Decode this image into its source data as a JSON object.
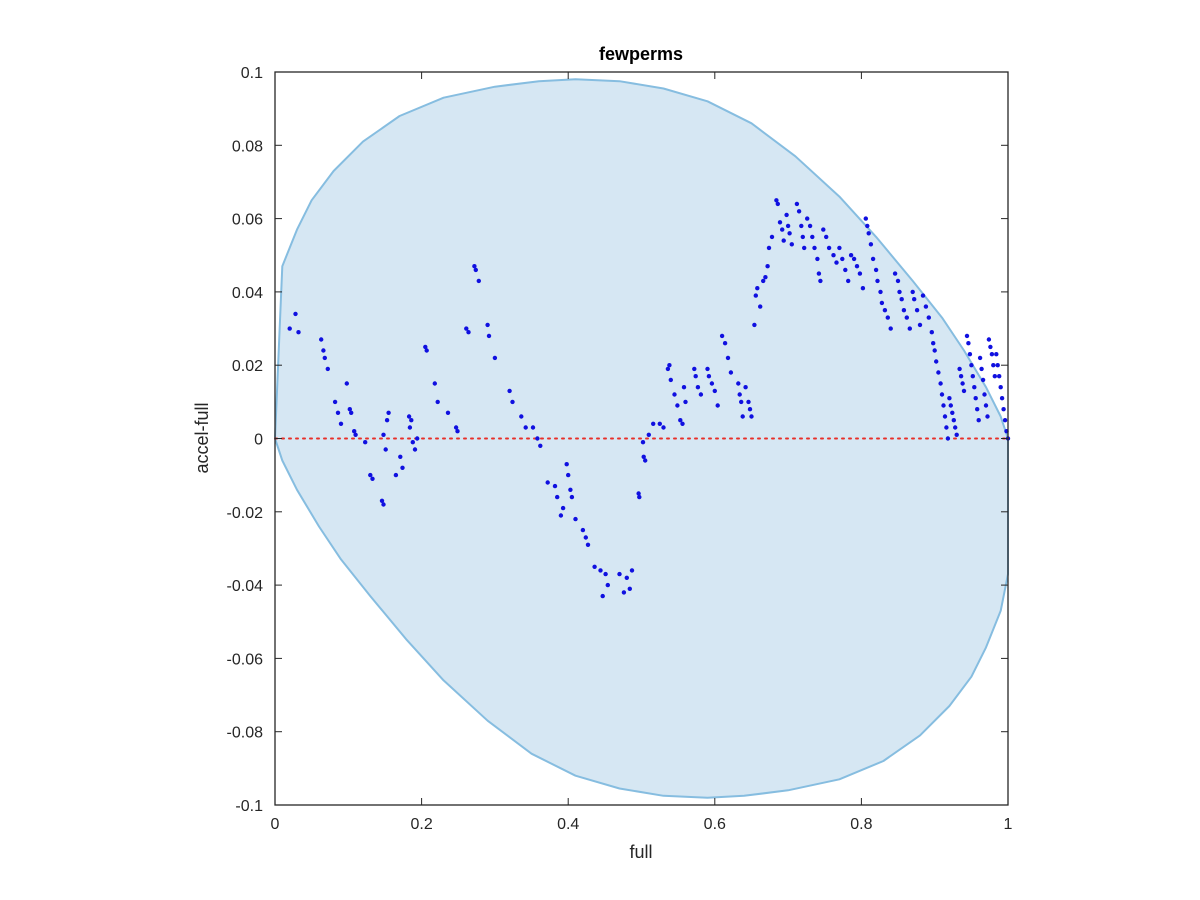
{
  "chart_data": {
    "type": "scatter",
    "title": "fewperms",
    "xlabel": "full",
    "ylabel": "accel-full",
    "xlim": [
      0,
      1
    ],
    "ylim": [
      -0.1,
      0.1
    ],
    "xticks": [
      "0",
      "0.2",
      "0.4",
      "0.6",
      "0.8",
      "1"
    ],
    "xtick_values": [
      0,
      0.2,
      0.4,
      0.6,
      0.8,
      1
    ],
    "yticks": [
      "-0.1",
      "-0.08",
      "-0.06",
      "-0.04",
      "-0.02",
      "0",
      "0.02",
      "0.04",
      "0.06",
      "0.08",
      "0.1"
    ],
    "ytick_values": [
      -0.1,
      -0.08,
      -0.06,
      -0.04,
      -0.02,
      0,
      0.02,
      0.04,
      0.06,
      0.08,
      0.1
    ],
    "grid": false,
    "reference_line": {
      "y": 0,
      "style": "dotted",
      "color": "#e8302a"
    },
    "region": {
      "description": "shaded elliptical confidence band",
      "fill_color": "#d6e7f3",
      "edge_color": "#86bde0",
      "boundary": [
        [
          0.0,
          0.0
        ],
        [
          0.01,
          0.047
        ],
        [
          0.03,
          0.057
        ],
        [
          0.05,
          0.065
        ],
        [
          0.08,
          0.073
        ],
        [
          0.12,
          0.081
        ],
        [
          0.17,
          0.088
        ],
        [
          0.23,
          0.093
        ],
        [
          0.3,
          0.096
        ],
        [
          0.36,
          0.0975
        ],
        [
          0.41,
          0.098
        ],
        [
          0.47,
          0.0975
        ],
        [
          0.53,
          0.0955
        ],
        [
          0.59,
          0.092
        ],
        [
          0.65,
          0.086
        ],
        [
          0.71,
          0.077
        ],
        [
          0.77,
          0.066
        ],
        [
          0.82,
          0.055
        ],
        [
          0.87,
          0.043
        ],
        [
          0.91,
          0.033
        ],
        [
          0.94,
          0.024
        ],
        [
          0.97,
          0.014
        ],
        [
          0.99,
          0.006
        ],
        [
          1.0,
          0.0
        ],
        [
          1.0,
          -0.037
        ],
        [
          0.99,
          -0.047
        ],
        [
          0.97,
          -0.057
        ],
        [
          0.95,
          -0.065
        ],
        [
          0.92,
          -0.073
        ],
        [
          0.88,
          -0.081
        ],
        [
          0.83,
          -0.088
        ],
        [
          0.77,
          -0.093
        ],
        [
          0.7,
          -0.096
        ],
        [
          0.64,
          -0.0975
        ],
        [
          0.59,
          -0.098
        ],
        [
          0.53,
          -0.0975
        ],
        [
          0.47,
          -0.0955
        ],
        [
          0.41,
          -0.092
        ],
        [
          0.35,
          -0.086
        ],
        [
          0.29,
          -0.077
        ],
        [
          0.23,
          -0.066
        ],
        [
          0.18,
          -0.055
        ],
        [
          0.13,
          -0.043
        ],
        [
          0.09,
          -0.033
        ],
        [
          0.06,
          -0.024
        ],
        [
          0.03,
          -0.014
        ],
        [
          0.01,
          -0.006
        ],
        [
          0.0,
          0.0
        ]
      ]
    },
    "series": [
      {
        "marker_color": "#1010e0",
        "points": [
          [
            0.02,
            0.03
          ],
          [
            0.028,
            0.034
          ],
          [
            0.032,
            0.029
          ],
          [
            0.063,
            0.027
          ],
          [
            0.066,
            0.024
          ],
          [
            0.068,
            0.022
          ],
          [
            0.072,
            0.019
          ],
          [
            0.082,
            0.01
          ],
          [
            0.086,
            0.007
          ],
          [
            0.09,
            0.004
          ],
          [
            0.098,
            0.015
          ],
          [
            0.102,
            0.008
          ],
          [
            0.104,
            0.007
          ],
          [
            0.108,
            0.002
          ],
          [
            0.11,
            0.001
          ],
          [
            0.123,
            -0.001
          ],
          [
            0.13,
            -0.01
          ],
          [
            0.133,
            -0.011
          ],
          [
            0.146,
            -0.017
          ],
          [
            0.148,
            -0.018
          ],
          [
            0.148,
            0.001
          ],
          [
            0.151,
            -0.003
          ],
          [
            0.153,
            0.005
          ],
          [
            0.155,
            0.007
          ],
          [
            0.165,
            -0.01
          ],
          [
            0.171,
            -0.005
          ],
          [
            0.174,
            -0.008
          ],
          [
            0.183,
            0.006
          ],
          [
            0.184,
            0.003
          ],
          [
            0.186,
            0.005
          ],
          [
            0.188,
            -0.001
          ],
          [
            0.191,
            -0.003
          ],
          [
            0.194,
            0.0
          ],
          [
            0.205,
            0.025
          ],
          [
            0.207,
            0.024
          ],
          [
            0.218,
            0.015
          ],
          [
            0.222,
            0.01
          ],
          [
            0.236,
            0.007
          ],
          [
            0.247,
            0.003
          ],
          [
            0.249,
            0.002
          ],
          [
            0.261,
            0.03
          ],
          [
            0.264,
            0.029
          ],
          [
            0.272,
            0.047
          ],
          [
            0.274,
            0.046
          ],
          [
            0.278,
            0.043
          ],
          [
            0.29,
            0.031
          ],
          [
            0.292,
            0.028
          ],
          [
            0.3,
            0.022
          ],
          [
            0.32,
            0.013
          ],
          [
            0.324,
            0.01
          ],
          [
            0.336,
            0.006
          ],
          [
            0.342,
            0.003
          ],
          [
            0.352,
            0.003
          ],
          [
            0.358,
            0.0
          ],
          [
            0.362,
            -0.002
          ],
          [
            0.372,
            -0.012
          ],
          [
            0.382,
            -0.013
          ],
          [
            0.385,
            -0.016
          ],
          [
            0.39,
            -0.021
          ],
          [
            0.393,
            -0.019
          ],
          [
            0.398,
            -0.007
          ],
          [
            0.4,
            -0.01
          ],
          [
            0.403,
            -0.014
          ],
          [
            0.405,
            -0.016
          ],
          [
            0.41,
            -0.022
          ],
          [
            0.42,
            -0.025
          ],
          [
            0.424,
            -0.027
          ],
          [
            0.427,
            -0.029
          ],
          [
            0.436,
            -0.035
          ],
          [
            0.444,
            -0.036
          ],
          [
            0.447,
            -0.043
          ],
          [
            0.451,
            -0.037
          ],
          [
            0.454,
            -0.04
          ],
          [
            0.47,
            -0.037
          ],
          [
            0.476,
            -0.042
          ],
          [
            0.48,
            -0.038
          ],
          [
            0.484,
            -0.041
          ],
          [
            0.487,
            -0.036
          ],
          [
            0.496,
            -0.015
          ],
          [
            0.497,
            -0.016
          ],
          [
            0.502,
            -0.001
          ],
          [
            0.503,
            -0.005
          ],
          [
            0.505,
            -0.006
          ],
          [
            0.51,
            0.001
          ],
          [
            0.516,
            0.004
          ],
          [
            0.525,
            0.004
          ],
          [
            0.53,
            0.003
          ],
          [
            0.536,
            0.019
          ],
          [
            0.538,
            0.02
          ],
          [
            0.54,
            0.016
          ],
          [
            0.545,
            0.012
          ],
          [
            0.549,
            0.009
          ],
          [
            0.553,
            0.005
          ],
          [
            0.556,
            0.004
          ],
          [
            0.558,
            0.014
          ],
          [
            0.56,
            0.01
          ],
          [
            0.572,
            0.019
          ],
          [
            0.574,
            0.017
          ],
          [
            0.577,
            0.014
          ],
          [
            0.581,
            0.012
          ],
          [
            0.59,
            0.019
          ],
          [
            0.592,
            0.017
          ],
          [
            0.596,
            0.015
          ],
          [
            0.6,
            0.013
          ],
          [
            0.604,
            0.009
          ],
          [
            0.61,
            0.028
          ],
          [
            0.614,
            0.026
          ],
          [
            0.618,
            0.022
          ],
          [
            0.622,
            0.018
          ],
          [
            0.632,
            0.015
          ],
          [
            0.634,
            0.012
          ],
          [
            0.636,
            0.01
          ],
          [
            0.638,
            0.006
          ],
          [
            0.642,
            0.014
          ],
          [
            0.646,
            0.01
          ],
          [
            0.648,
            0.008
          ],
          [
            0.65,
            0.006
          ],
          [
            0.654,
            0.031
          ],
          [
            0.656,
            0.039
          ],
          [
            0.658,
            0.041
          ],
          [
            0.662,
            0.036
          ],
          [
            0.666,
            0.043
          ],
          [
            0.669,
            0.044
          ],
          [
            0.672,
            0.047
          ],
          [
            0.674,
            0.052
          ],
          [
            0.678,
            0.055
          ],
          [
            0.684,
            0.065
          ],
          [
            0.686,
            0.064
          ],
          [
            0.689,
            0.059
          ],
          [
            0.692,
            0.057
          ],
          [
            0.694,
            0.054
          ],
          [
            0.698,
            0.061
          ],
          [
            0.7,
            0.058
          ],
          [
            0.702,
            0.056
          ],
          [
            0.705,
            0.053
          ],
          [
            0.712,
            0.064
          ],
          [
            0.715,
            0.062
          ],
          [
            0.718,
            0.058
          ],
          [
            0.72,
            0.055
          ],
          [
            0.722,
            0.052
          ],
          [
            0.726,
            0.06
          ],
          [
            0.73,
            0.058
          ],
          [
            0.733,
            0.055
          ],
          [
            0.736,
            0.052
          ],
          [
            0.74,
            0.049
          ],
          [
            0.742,
            0.045
          ],
          [
            0.744,
            0.043
          ],
          [
            0.748,
            0.057
          ],
          [
            0.752,
            0.055
          ],
          [
            0.756,
            0.052
          ],
          [
            0.762,
            0.05
          ],
          [
            0.766,
            0.048
          ],
          [
            0.77,
            0.052
          ],
          [
            0.774,
            0.049
          ],
          [
            0.778,
            0.046
          ],
          [
            0.782,
            0.043
          ],
          [
            0.786,
            0.05
          ],
          [
            0.79,
            0.049
          ],
          [
            0.794,
            0.047
          ],
          [
            0.798,
            0.045
          ],
          [
            0.802,
            0.041
          ],
          [
            0.806,
            0.06
          ],
          [
            0.808,
            0.058
          ],
          [
            0.81,
            0.056
          ],
          [
            0.813,
            0.053
          ],
          [
            0.816,
            0.049
          ],
          [
            0.82,
            0.046
          ],
          [
            0.822,
            0.043
          ],
          [
            0.826,
            0.04
          ],
          [
            0.828,
            0.037
          ],
          [
            0.832,
            0.035
          ],
          [
            0.836,
            0.033
          ],
          [
            0.84,
            0.03
          ],
          [
            0.846,
            0.045
          ],
          [
            0.85,
            0.043
          ],
          [
            0.852,
            0.04
          ],
          [
            0.855,
            0.038
          ],
          [
            0.858,
            0.035
          ],
          [
            0.862,
            0.033
          ],
          [
            0.866,
            0.03
          ],
          [
            0.87,
            0.04
          ],
          [
            0.872,
            0.038
          ],
          [
            0.876,
            0.035
          ],
          [
            0.88,
            0.031
          ],
          [
            0.884,
            0.039
          ],
          [
            0.888,
            0.036
          ],
          [
            0.892,
            0.033
          ],
          [
            0.896,
            0.029
          ],
          [
            0.898,
            0.026
          ],
          [
            0.9,
            0.024
          ],
          [
            0.902,
            0.021
          ],
          [
            0.905,
            0.018
          ],
          [
            0.908,
            0.015
          ],
          [
            0.91,
            0.012
          ],
          [
            0.912,
            0.009
          ],
          [
            0.914,
            0.006
          ],
          [
            0.916,
            0.003
          ],
          [
            0.918,
            0.0
          ],
          [
            0.92,
            0.011
          ],
          [
            0.922,
            0.009
          ],
          [
            0.924,
            0.007
          ],
          [
            0.926,
            0.005
          ],
          [
            0.928,
            0.003
          ],
          [
            0.93,
            0.001
          ],
          [
            0.934,
            0.019
          ],
          [
            0.936,
            0.017
          ],
          [
            0.938,
            0.015
          ],
          [
            0.94,
            0.013
          ],
          [
            0.944,
            0.028
          ],
          [
            0.946,
            0.026
          ],
          [
            0.948,
            0.023
          ],
          [
            0.95,
            0.02
          ],
          [
            0.952,
            0.017
          ],
          [
            0.954,
            0.014
          ],
          [
            0.956,
            0.011
          ],
          [
            0.958,
            0.008
          ],
          [
            0.96,
            0.005
          ],
          [
            0.962,
            0.022
          ],
          [
            0.964,
            0.019
          ],
          [
            0.966,
            0.016
          ],
          [
            0.968,
            0.012
          ],
          [
            0.97,
            0.009
          ],
          [
            0.972,
            0.006
          ],
          [
            0.974,
            0.027
          ],
          [
            0.976,
            0.025
          ],
          [
            0.978,
            0.023
          ],
          [
            0.98,
            0.02
          ],
          [
            0.982,
            0.017
          ],
          [
            0.984,
            0.023
          ],
          [
            0.986,
            0.02
          ],
          [
            0.988,
            0.017
          ],
          [
            0.99,
            0.014
          ],
          [
            0.992,
            0.011
          ],
          [
            0.994,
            0.008
          ],
          [
            0.996,
            0.005
          ],
          [
            0.998,
            0.002
          ],
          [
            1.0,
            0.0
          ]
        ]
      }
    ]
  }
}
